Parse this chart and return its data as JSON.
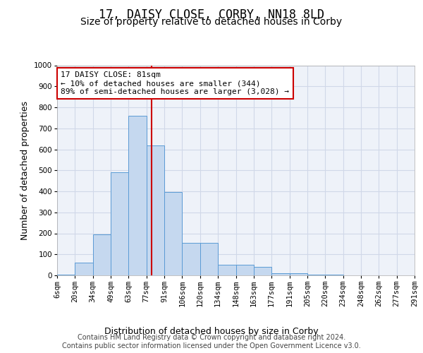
{
  "title": "17, DAISY CLOSE, CORBY, NN18 8LD",
  "subtitle": "Size of property relative to detached houses in Corby",
  "xlabel": "Distribution of detached houses by size in Corby",
  "ylabel": "Number of detached properties",
  "tick_labels": [
    "6sqm",
    "20sqm",
    "34sqm",
    "49sqm",
    "63sqm",
    "77sqm",
    "91sqm",
    "106sqm",
    "120sqm",
    "134sqm",
    "148sqm",
    "163sqm",
    "177sqm",
    "191sqm",
    "205sqm",
    "220sqm",
    "234sqm",
    "248sqm",
    "262sqm",
    "277sqm",
    "291sqm"
  ],
  "bar_heights": [
    5,
    60,
    195,
    490,
    760,
    620,
    395,
    155,
    155,
    50,
    50,
    40,
    10,
    10,
    5,
    2,
    0,
    0,
    0,
    0
  ],
  "bar_color": "#c5d8ef",
  "bar_edge_color": "#5b9bd5",
  "vline_pos": 4.286,
  "vline_color": "#cc0000",
  "annotation_text": "17 DAISY CLOSE: 81sqm\n← 10% of detached houses are smaller (344)\n89% of semi-detached houses are larger (3,028) →",
  "footer_text": "Contains HM Land Registry data © Crown copyright and database right 2024.\nContains public sector information licensed under the Open Government Licence v3.0.",
  "ylim": [
    0,
    1000
  ],
  "yticks": [
    0,
    100,
    200,
    300,
    400,
    500,
    600,
    700,
    800,
    900,
    1000
  ],
  "bg_color": "#eef2f9",
  "grid_color": "#d0d8e8",
  "title_fontsize": 12,
  "subtitle_fontsize": 10,
  "axis_label_fontsize": 9,
  "tick_fontsize": 7.5,
  "footer_fontsize": 7
}
